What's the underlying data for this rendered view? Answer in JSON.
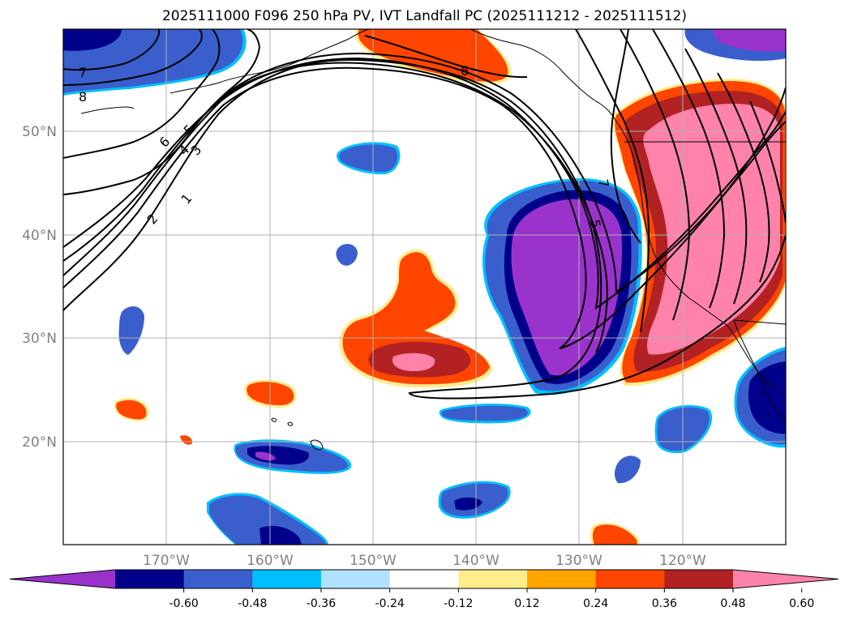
{
  "title": "2025111000 F096 250 hPa PV, IVT Landfall PC (2025111212 - 2025111512)",
  "longitude_ticks": [
    "170°W",
    "160°W",
    "150°W",
    "140°W",
    "130°W",
    "120°W"
  ],
  "latitude_ticks": [
    "50°N",
    "40°N",
    "30°N",
    "20°N"
  ],
  "colorbar": {
    "colors": [
      "#9933cc",
      "#00008b",
      "#3a5fcd",
      "#00bfff",
      "#b0e2ff",
      "#ffffff",
      "#ffec8b",
      "#ffa500",
      "#ff4500",
      "#b22222",
      "#ff82ab"
    ],
    "labels": [
      "-0.60",
      "-0.48",
      "-0.36",
      "-0.24",
      "-0.12",
      "0.12",
      "0.24",
      "0.36",
      "0.48",
      "0.60"
    ]
  },
  "contour_labels": [
    "7",
    "8",
    "6",
    "5",
    "4",
    "3",
    "2",
    "1",
    "6",
    "7",
    "5"
  ]
}
